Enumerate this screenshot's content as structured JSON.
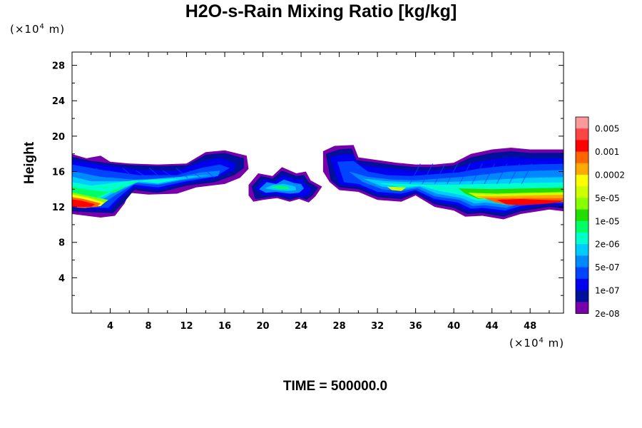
{
  "chart_data": {
    "type": "contour",
    "title": "H2O-s-Rain Mixing Ratio [kg/kg]",
    "ylabel": "Height",
    "x_unit": {
      "prefix": "(×10",
      "exp": "4",
      "suffix": " m)"
    },
    "y_unit": {
      "prefix": "(×10",
      "exp": "4",
      "suffix": " m)"
    },
    "footer": "TIME = 500000.0",
    "xlim": [
      0,
      51.5
    ],
    "ylim": [
      0,
      29.5
    ],
    "x_ticks": [
      4,
      8,
      12,
      16,
      20,
      24,
      28,
      32,
      36,
      40,
      44,
      48
    ],
    "y_ticks": [
      4,
      8,
      12,
      16,
      20,
      24,
      28
    ],
    "colorbar": {
      "labels": [
        "0.005",
        "0.001",
        "0.0002",
        "5e-05",
        "1e-05",
        "2e-06",
        "5e-07",
        "1e-07",
        "2e-08"
      ],
      "colors": [
        "#ff9999",
        "#ff4444",
        "#ff0000",
        "#ff6600",
        "#ffaa00",
        "#ffff00",
        "#ccff00",
        "#88ff00",
        "#22dd00",
        "#00ff66",
        "#00ffcc",
        "#00ccff",
        "#0088ff",
        "#0044ff",
        "#0000ee",
        "#001199",
        "#7700aa"
      ]
    },
    "regions": [
      {
        "name": "left band",
        "x_range": [
          0,
          18.5
        ],
        "y_range": [
          11,
          18.5
        ],
        "max_level": "0.001"
      },
      {
        "name": "center patch",
        "x_range": [
          18.5,
          26.5
        ],
        "y_range": [
          12.5,
          16.5
        ],
        "max_level": "5e-05"
      },
      {
        "name": "right band",
        "x_range": [
          26,
          51.5
        ],
        "y_range": [
          10.5,
          19
        ],
        "max_level": "0.001"
      }
    ]
  }
}
